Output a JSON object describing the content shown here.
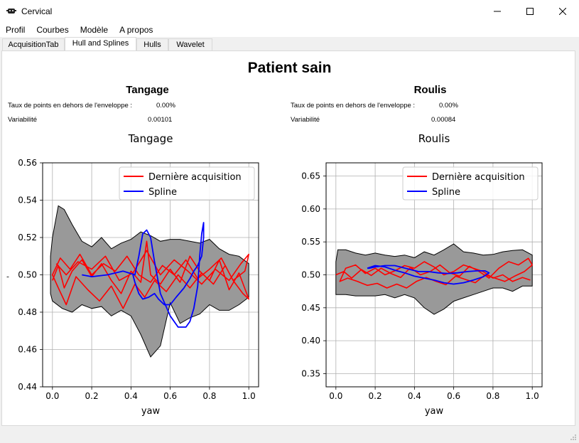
{
  "window": {
    "title": "Cervical"
  },
  "menu": [
    "Profil",
    "Courbes",
    "Modèle",
    "A propos"
  ],
  "tabs": [
    "AcquisitionTab",
    "Hull and Splines",
    "Hulls",
    "Wavelet"
  ],
  "figure": {
    "suptitle": "Patient sain",
    "left": {
      "heading": "Tangage",
      "out_label": "Taux de points en dehors de l'enveloppe :",
      "out_value": "0.00%",
      "var_label": "Variabilité",
      "var_value": "0.00101"
    },
    "right": {
      "heading": "Roulis",
      "out_label": "Taux de points en dehors de l'enveloppe :",
      "out_value": "0.00%",
      "var_label": "Variabilité",
      "var_value": "0.00084"
    }
  },
  "chart_data": [
    {
      "type": "line",
      "title": "Tangage",
      "xlabel": "yaw",
      "ylabel": "-",
      "xlim": [
        -0.05,
        1.05
      ],
      "ylim": [
        0.44,
        0.56
      ],
      "xticks": [
        "0.0",
        "0.2",
        "0.4",
        "0.6",
        "0.8",
        "1.0"
      ],
      "yticks": [
        "0.44",
        "0.46",
        "0.48",
        "0.50",
        "0.52",
        "0.54",
        "0.56"
      ],
      "grid": true,
      "legend": [
        "Dernière acquisition",
        "Spline"
      ],
      "legend_position": "top-right",
      "hull": {
        "x": [
          -0.01,
          0.0,
          0.03,
          0.06,
          0.1,
          0.15,
          0.2,
          0.25,
          0.3,
          0.35,
          0.4,
          0.45,
          0.5,
          0.55,
          0.6,
          0.65,
          0.7,
          0.75,
          0.8,
          0.85,
          0.9,
          0.95,
          1.0,
          1.0,
          0.95,
          0.9,
          0.85,
          0.8,
          0.75,
          0.7,
          0.65,
          0.6,
          0.55,
          0.5,
          0.45,
          0.4,
          0.35,
          0.3,
          0.25,
          0.2,
          0.15,
          0.1,
          0.05,
          0.0,
          -0.01
        ],
        "y": [
          0.51,
          0.52,
          0.537,
          0.535,
          0.527,
          0.518,
          0.515,
          0.52,
          0.514,
          0.517,
          0.519,
          0.523,
          0.521,
          0.518,
          0.519,
          0.519,
          0.518,
          0.517,
          0.519,
          0.514,
          0.511,
          0.51,
          0.506,
          0.488,
          0.484,
          0.481,
          0.481,
          0.484,
          0.479,
          0.477,
          0.474,
          0.485,
          0.462,
          0.456,
          0.468,
          0.478,
          0.481,
          0.478,
          0.483,
          0.482,
          0.484,
          0.48,
          0.482,
          0.486,
          0.49
        ]
      },
      "series": [
        {
          "name": "Dernière acquisition",
          "color": "#ff0000",
          "x": [
            0.0,
            0.03,
            0.06,
            0.1,
            0.15,
            0.2,
            0.25,
            0.3,
            0.35,
            0.4,
            0.45,
            0.48,
            0.5,
            0.55,
            0.6,
            0.65,
            0.7,
            0.75,
            0.8,
            0.85,
            0.9,
            0.95,
            1.0,
            0.97,
            0.92,
            0.88,
            0.82,
            0.76,
            0.7,
            0.64,
            0.58,
            0.52,
            0.47,
            0.42,
            0.36,
            0.3,
            0.24,
            0.18,
            0.12,
            0.07,
            0.03,
            0.0,
            0.04,
            0.09,
            0.14,
            0.2,
            0.26,
            0.32,
            0.38,
            0.44,
            0.5,
            0.56,
            0.62,
            0.68,
            0.74,
            0.8,
            0.86,
            0.92,
            0.98,
            1.0,
            0.96,
            0.9,
            0.83,
            0.76,
            0.69,
            0.62,
            0.55,
            0.48,
            0.41,
            0.34,
            0.27,
            0.2,
            0.13,
            0.07,
            0.02
          ],
          "y": [
            0.497,
            0.505,
            0.493,
            0.502,
            0.508,
            0.499,
            0.506,
            0.497,
            0.49,
            0.502,
            0.496,
            0.518,
            0.5,
            0.495,
            0.503,
            0.496,
            0.51,
            0.502,
            0.497,
            0.508,
            0.492,
            0.501,
            0.487,
            0.49,
            0.497,
            0.505,
            0.495,
            0.501,
            0.493,
            0.5,
            0.491,
            0.497,
            0.488,
            0.495,
            0.482,
            0.494,
            0.486,
            0.492,
            0.499,
            0.484,
            0.493,
            0.5,
            0.509,
            0.503,
            0.511,
            0.5,
            0.506,
            0.502,
            0.51,
            0.5,
            0.496,
            0.505,
            0.5,
            0.508,
            0.498,
            0.503,
            0.509,
            0.497,
            0.502,
            0.511,
            0.506,
            0.497,
            0.503,
            0.495,
            0.502,
            0.508,
            0.5,
            0.513,
            0.501,
            0.497,
            0.51,
            0.503,
            0.507,
            0.5,
            0.506
          ]
        },
        {
          "name": "Spline",
          "color": "#0000ff",
          "x": [
            0.15,
            0.2,
            0.28,
            0.36,
            0.42,
            0.44,
            0.46,
            0.48,
            0.5,
            0.52,
            0.55,
            0.6,
            0.64,
            0.68,
            0.7,
            0.72,
            0.74,
            0.75,
            0.76,
            0.77,
            0.77,
            0.76,
            0.74,
            0.72,
            0.7,
            0.67,
            0.63,
            0.6,
            0.57,
            0.54,
            0.52,
            0.49,
            0.46,
            0.44,
            0.42,
            0.41
          ],
          "y": [
            0.5,
            0.499,
            0.5,
            0.502,
            0.5,
            0.51,
            0.522,
            0.524,
            0.52,
            0.507,
            0.49,
            0.478,
            0.472,
            0.472,
            0.475,
            0.482,
            0.494,
            0.51,
            0.522,
            0.528,
            0.52,
            0.51,
            0.505,
            0.502,
            0.498,
            0.493,
            0.488,
            0.484,
            0.484,
            0.487,
            0.49,
            0.488,
            0.487,
            0.49,
            0.496,
            0.5
          ]
        }
      ]
    },
    {
      "type": "line",
      "title": "Roulis",
      "xlabel": "yaw",
      "ylabel": "",
      "xlim": [
        -0.05,
        1.05
      ],
      "ylim": [
        0.33,
        0.67
      ],
      "xticks": [
        "0.0",
        "0.2",
        "0.4",
        "0.6",
        "0.8",
        "1.0"
      ],
      "yticks": [
        "0.35",
        "0.40",
        "0.45",
        "0.50",
        "0.55",
        "0.60",
        "0.65"
      ],
      "grid": true,
      "legend": [
        "Dernière acquisition",
        "Spline"
      ],
      "legend_position": "top-right",
      "hull": {
        "x": [
          0.0,
          0.01,
          0.05,
          0.1,
          0.15,
          0.2,
          0.25,
          0.3,
          0.35,
          0.4,
          0.45,
          0.5,
          0.55,
          0.6,
          0.65,
          0.7,
          0.75,
          0.8,
          0.85,
          0.9,
          0.95,
          1.0,
          1.0,
          0.95,
          0.9,
          0.85,
          0.8,
          0.75,
          0.7,
          0.65,
          0.6,
          0.55,
          0.5,
          0.45,
          0.4,
          0.35,
          0.3,
          0.25,
          0.2,
          0.15,
          0.1,
          0.05,
          0.0
        ],
        "y": [
          0.52,
          0.538,
          0.538,
          0.533,
          0.53,
          0.533,
          0.53,
          0.528,
          0.53,
          0.526,
          0.535,
          0.53,
          0.538,
          0.547,
          0.535,
          0.533,
          0.53,
          0.531,
          0.535,
          0.537,
          0.538,
          0.53,
          0.483,
          0.483,
          0.475,
          0.48,
          0.48,
          0.475,
          0.47,
          0.465,
          0.46,
          0.448,
          0.44,
          0.45,
          0.465,
          0.47,
          0.465,
          0.47,
          0.468,
          0.468,
          0.468,
          0.47,
          0.47
        ]
      },
      "series": [
        {
          "name": "Dernière acquisition",
          "color": "#ff0000",
          "x": [
            0.0,
            0.04,
            0.08,
            0.13,
            0.18,
            0.23,
            0.28,
            0.33,
            0.38,
            0.43,
            0.48,
            0.53,
            0.58,
            0.63,
            0.68,
            0.73,
            0.78,
            0.83,
            0.88,
            0.93,
            0.98,
            1.0,
            0.96,
            0.91,
            0.86,
            0.81,
            0.76,
            0.71,
            0.66,
            0.61,
            0.56,
            0.51,
            0.46,
            0.41,
            0.36,
            0.31,
            0.26,
            0.21,
            0.16,
            0.11,
            0.06,
            0.02,
            0.05,
            0.1,
            0.15,
            0.2,
            0.25,
            0.3,
            0.35,
            0.4,
            0.45,
            0.5,
            0.55,
            0.6,
            0.65,
            0.7,
            0.75,
            0.8,
            0.85,
            0.9,
            0.95,
            0.99
          ],
          "y": [
            0.5,
            0.505,
            0.495,
            0.508,
            0.499,
            0.51,
            0.502,
            0.496,
            0.511,
            0.5,
            0.505,
            0.515,
            0.503,
            0.498,
            0.513,
            0.505,
            0.495,
            0.51,
            0.52,
            0.515,
            0.525,
            0.515,
            0.505,
            0.498,
            0.49,
            0.495,
            0.5,
            0.488,
            0.493,
            0.498,
            0.485,
            0.49,
            0.496,
            0.49,
            0.48,
            0.486,
            0.48,
            0.487,
            0.484,
            0.49,
            0.495,
            0.49,
            0.51,
            0.515,
            0.502,
            0.51,
            0.5,
            0.506,
            0.514,
            0.51,
            0.52,
            0.512,
            0.5,
            0.505,
            0.515,
            0.51,
            0.505,
            0.495,
            0.5,
            0.49,
            0.496,
            0.492
          ]
        },
        {
          "name": "Spline",
          "color": "#0000ff",
          "x": [
            0.16,
            0.2,
            0.25,
            0.3,
            0.35,
            0.4,
            0.45,
            0.5,
            0.55,
            0.6,
            0.65,
            0.7,
            0.75,
            0.78,
            0.76,
            0.72,
            0.67,
            0.62,
            0.57,
            0.52,
            0.47,
            0.42,
            0.38,
            0.34,
            0.3,
            0.25,
            0.2,
            0.17,
            0.16
          ],
          "y": [
            0.51,
            0.514,
            0.512,
            0.507,
            0.503,
            0.498,
            0.495,
            0.492,
            0.488,
            0.486,
            0.488,
            0.492,
            0.497,
            0.503,
            0.506,
            0.506,
            0.505,
            0.503,
            0.502,
            0.503,
            0.505,
            0.505,
            0.508,
            0.511,
            0.514,
            0.514,
            0.512,
            0.51,
            0.51
          ]
        }
      ]
    }
  ]
}
